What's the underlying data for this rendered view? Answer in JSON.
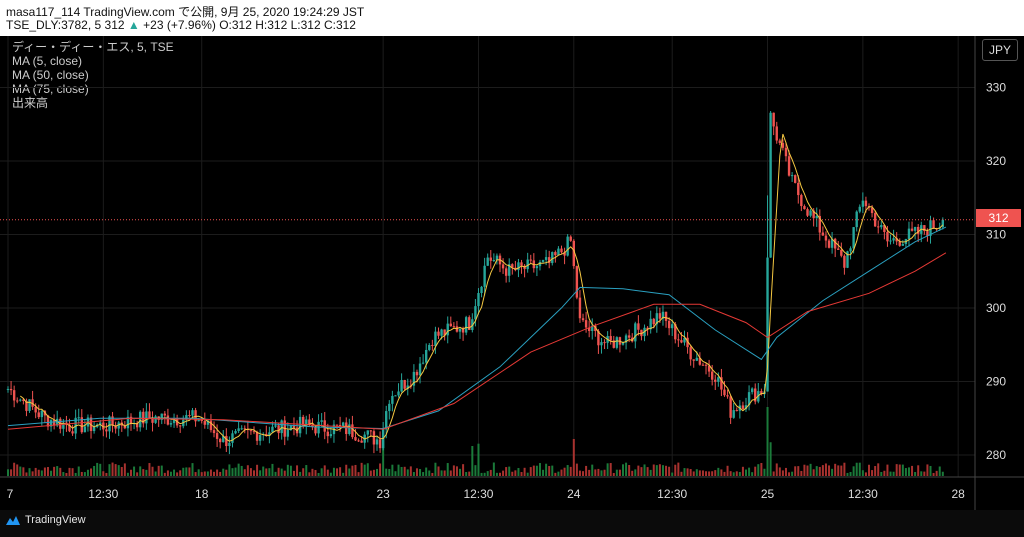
{
  "header": {
    "line1": "masa117_114 TradingView.com で公開, 9月 25, 2020 19:24:29 JST",
    "symbol": "TSE_DLY:3782, 5",
    "price": "312",
    "change": "+23 (+7.96%)",
    "ohlc": "O:312 H:312 L:312 C:312"
  },
  "legend": {
    "title": "ディー・ディー・エス, 5, TSE",
    "ma5": "MA (5, close)",
    "ma50": "MA (50, close)",
    "ma75": "MA (75, close)",
    "volume": "出来高"
  },
  "currency": "JPY",
  "last_price_label": "312",
  "branding": "TradingView",
  "colors": {
    "up": "#26a69a",
    "down": "#ef5350",
    "ma5": "#f5c842",
    "ma50": "#2aa0c0",
    "ma75": "#e53935"
  },
  "chart_data": {
    "type": "candlestick",
    "interval": "5",
    "y_axis": {
      "ticks": [
        280,
        290,
        300,
        310,
        320,
        330
      ],
      "ylim": [
        277,
        337
      ]
    },
    "x_axis": {
      "ticks": [
        {
          "label": "7",
          "bar": 0
        },
        {
          "label": "12:30",
          "bar": 31
        },
        {
          "label": "18",
          "bar": 63
        },
        {
          "label": "23",
          "bar": 122
        },
        {
          "label": "12:30",
          "bar": 153
        },
        {
          "label": "24",
          "bar": 184
        },
        {
          "label": "12:30",
          "bar": 216
        },
        {
          "label": "25",
          "bar": 247
        },
        {
          "label": "12:30",
          "bar": 278
        },
        {
          "label": "28",
          "bar": 309
        }
      ]
    },
    "close_segments": [
      {
        "from": 0,
        "to": 12,
        "start": 289,
        "end": 285
      },
      {
        "from": 12,
        "to": 20,
        "start": 285,
        "end": 284
      },
      {
        "from": 20,
        "to": 32,
        "start": 284,
        "end": 284
      },
      {
        "from": 32,
        "to": 45,
        "start": 284,
        "end": 285
      },
      {
        "from": 45,
        "to": 62,
        "start": 285,
        "end": 285
      },
      {
        "from": 62,
        "to": 70,
        "start": 285,
        "end": 282
      },
      {
        "from": 70,
        "to": 80,
        "start": 282,
        "end": 283
      },
      {
        "from": 80,
        "to": 95,
        "start": 283,
        "end": 284
      },
      {
        "from": 95,
        "to": 110,
        "start": 284,
        "end": 283.5
      },
      {
        "from": 110,
        "to": 121,
        "start": 283.5,
        "end": 282
      },
      {
        "from": 121,
        "to": 124,
        "start": 282,
        "end": 288
      },
      {
        "from": 124,
        "to": 132,
        "start": 288,
        "end": 291
      },
      {
        "from": 132,
        "to": 138,
        "start": 291,
        "end": 296
      },
      {
        "from": 138,
        "to": 150,
        "start": 296,
        "end": 298
      },
      {
        "from": 150,
        "to": 156,
        "start": 298,
        "end": 307
      },
      {
        "from": 156,
        "to": 163,
        "start": 307,
        "end": 305
      },
      {
        "from": 163,
        "to": 176,
        "start": 305,
        "end": 306
      },
      {
        "from": 176,
        "to": 183,
        "start": 306,
        "end": 309
      },
      {
        "from": 183,
        "to": 186,
        "start": 309,
        "end": 298
      },
      {
        "from": 186,
        "to": 195,
        "start": 298,
        "end": 295
      },
      {
        "from": 195,
        "to": 205,
        "start": 295,
        "end": 297
      },
      {
        "from": 205,
        "to": 212,
        "start": 297,
        "end": 299
      },
      {
        "from": 212,
        "to": 222,
        "start": 299,
        "end": 294
      },
      {
        "from": 222,
        "to": 230,
        "start": 294,
        "end": 291
      },
      {
        "from": 230,
        "to": 235,
        "start": 291,
        "end": 286
      },
      {
        "from": 235,
        "to": 241,
        "start": 286,
        "end": 288
      },
      {
        "from": 241,
        "to": 246,
        "start": 288,
        "end": 289
      },
      {
        "from": 246,
        "to": 248,
        "start": 289,
        "end": 326
      },
      {
        "from": 248,
        "to": 255,
        "start": 326,
        "end": 317
      },
      {
        "from": 255,
        "to": 262,
        "start": 317,
        "end": 312
      },
      {
        "from": 262,
        "to": 272,
        "start": 312,
        "end": 306
      },
      {
        "from": 272,
        "to": 278,
        "start": 306,
        "end": 315
      },
      {
        "from": 278,
        "to": 286,
        "start": 315,
        "end": 309
      },
      {
        "from": 286,
        "to": 295,
        "start": 309,
        "end": 310
      },
      {
        "from": 295,
        "to": 305,
        "start": 310,
        "end": 312
      }
    ],
    "ma50_points": [
      [
        0,
        284
      ],
      [
        30,
        285
      ],
      [
        60,
        285
      ],
      [
        100,
        283.8
      ],
      [
        122,
        283.6
      ],
      [
        140,
        286
      ],
      [
        160,
        292
      ],
      [
        180,
        300
      ],
      [
        186,
        302.8
      ],
      [
        200,
        302.6
      ],
      [
        215,
        301.8
      ],
      [
        230,
        297
      ],
      [
        245,
        293
      ],
      [
        250,
        296
      ],
      [
        265,
        301
      ],
      [
        280,
        305
      ],
      [
        295,
        309
      ],
      [
        305,
        311
      ]
    ],
    "ma75_points": [
      [
        0,
        283.5
      ],
      [
        40,
        285
      ],
      [
        70,
        284.8
      ],
      [
        122,
        283.5
      ],
      [
        145,
        287
      ],
      [
        170,
        294
      ],
      [
        190,
        297.5
      ],
      [
        210,
        300.5
      ],
      [
        225,
        300.5
      ],
      [
        240,
        298
      ],
      [
        247,
        296
      ],
      [
        260,
        299.5
      ],
      [
        280,
        302
      ],
      [
        295,
        305
      ],
      [
        305,
        307.5
      ]
    ],
    "volume_ylim": [
      0,
      100
    ],
    "last_price": 312
  }
}
